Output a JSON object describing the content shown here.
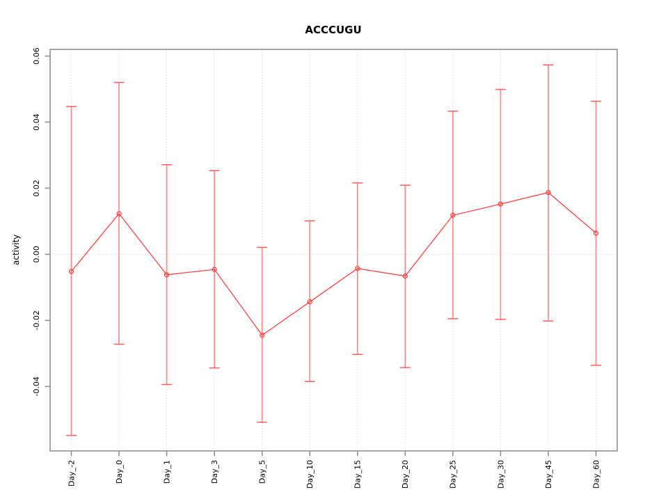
{
  "chart_data": {
    "type": "line",
    "title": "ACCCUGU",
    "xlabel": "",
    "ylabel": "activity",
    "categories": [
      "Day_-2",
      "Day_0",
      "Day_1",
      "Day_3",
      "Day_5",
      "Day_10",
      "Day_15",
      "Day_20",
      "Day_25",
      "Day_30",
      "Day_45",
      "Day_60"
    ],
    "series": [
      {
        "name": "activity",
        "marker": "open-circle",
        "values": [
          -0.0052,
          0.0123,
          -0.0062,
          -0.0046,
          -0.0245,
          -0.0144,
          -0.0043,
          -0.0066,
          0.0118,
          0.0152,
          0.0187,
          0.0064
        ],
        "error_upper": [
          0.0447,
          0.052,
          0.0271,
          0.0253,
          0.0021,
          0.0101,
          0.0216,
          0.0209,
          0.0433,
          0.0499,
          0.0573,
          0.0463
        ],
        "error_lower": [
          -0.0548,
          -0.0272,
          -0.0394,
          -0.0344,
          -0.0508,
          -0.0385,
          -0.0303,
          -0.0343,
          -0.0195,
          -0.0197,
          -0.0202,
          -0.0336
        ]
      }
    ],
    "y_ticks": [
      "-0.04",
      "-0.02",
      "0.00",
      "0.02",
      "0.04",
      "0.06"
    ],
    "y_tick_values": [
      -0.04,
      -0.02,
      0,
      0.02,
      0.04,
      0.06
    ],
    "ylim": [
      -0.0595,
      0.062
    ],
    "grid": "dotted vertical line at each category; dotted horizontal line at y=0",
    "legend": "none",
    "tick_label_rotation": -90,
    "colors": {
      "series": "#ff4040",
      "error_bar": "#ff8f8f",
      "error_cap": "#ff5c5c",
      "frame": "#8f8f8f",
      "grid": "#dcdcdc",
      "text": "#000000",
      "background": "#ffffff"
    }
  }
}
